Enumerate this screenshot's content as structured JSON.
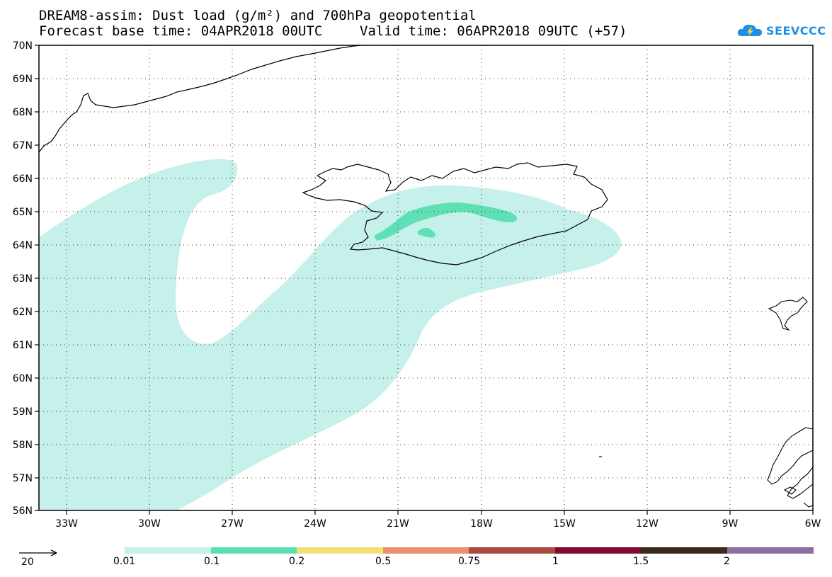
{
  "header": {
    "title_line1": "DREAM8-assim: Dust load (g/m²) and 700hPa geopotential",
    "title_line2a": "Forecast base time: 04APR2018 00UTC",
    "title_line2b": "Valid time: 06APR2018 09UTC (+57)",
    "logo_text": "SEEVCCC",
    "logo_color": "#1e90e6"
  },
  "map": {
    "lat_labels": [
      "70N",
      "69N",
      "68N",
      "67N",
      "66N",
      "65N",
      "64N",
      "63N",
      "62N",
      "61N",
      "60N",
      "59N",
      "58N",
      "57N",
      "56N"
    ],
    "lon_labels": [
      "33W",
      "30W",
      "27W",
      "24W",
      "21W",
      "18W",
      "15W",
      "12W",
      "9W",
      "6W"
    ],
    "extent": {
      "lon_min": -34,
      "lon_max": -6,
      "lat_min": 56,
      "lat_max": 70
    },
    "land_outline_color": "#000000",
    "grid_style": "dotted"
  },
  "legend": {
    "vector_label": "20",
    "bins": [
      {
        "label": "0.01",
        "color": "#c6f0ea"
      },
      {
        "label": "0.1",
        "color": "#5fe0b4"
      },
      {
        "label": "0.2",
        "color": "#f4e07a"
      },
      {
        "label": "0.5",
        "color": "#ec9070"
      },
      {
        "label": "0.75",
        "color": "#a84a40"
      },
      {
        "label": "1",
        "color": "#820a30"
      },
      {
        "label": "1.5",
        "color": "#3a2a1a"
      },
      {
        "label": "2",
        "color": "#8e6ca0"
      }
    ]
  }
}
